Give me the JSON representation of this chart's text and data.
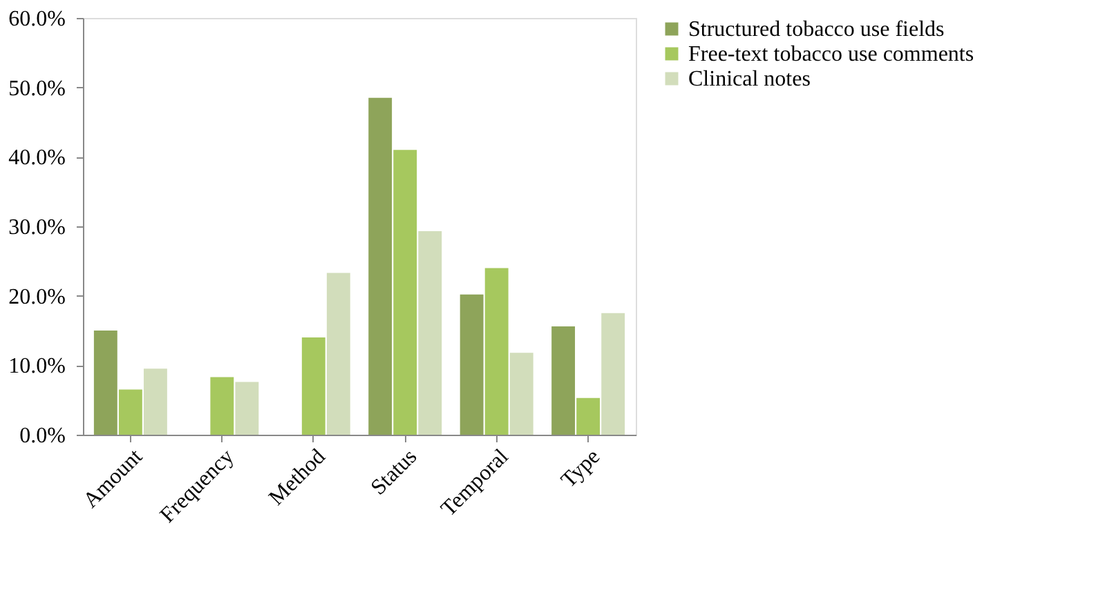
{
  "chart_data": {
    "type": "bar",
    "categories": [
      "Amount",
      "Frequency",
      "Method",
      "Status",
      "Temporal",
      "Type"
    ],
    "series": [
      {
        "name": "Structured tobacco use fields",
        "color": "#8ea45a",
        "values": [
          15.0,
          0,
          0,
          48.5,
          20.2,
          15.6
        ]
      },
      {
        "name": "Free-text tobacco use comments",
        "color": "#a6c85e",
        "values": [
          6.5,
          8.3,
          14.0,
          41.0,
          24.0,
          5.3
        ]
      },
      {
        "name": "Clinical notes",
        "color": "#d2ddbb",
        "values": [
          9.5,
          7.6,
          23.3,
          29.3,
          11.8,
          17.5
        ]
      }
    ],
    "ylim": [
      0,
      60
    ],
    "yticks": [
      {
        "value": 0,
        "label": "0.0%"
      },
      {
        "value": 10,
        "label": "10.0%"
      },
      {
        "value": 20,
        "label": "20.0%"
      },
      {
        "value": 30,
        "label": "30.0%"
      },
      {
        "value": 40,
        "label": "40.0%"
      },
      {
        "value": 50,
        "label": "50.0%"
      },
      {
        "value": 60,
        "label": "60.0%"
      }
    ],
    "grid": false,
    "legend": "right"
  }
}
